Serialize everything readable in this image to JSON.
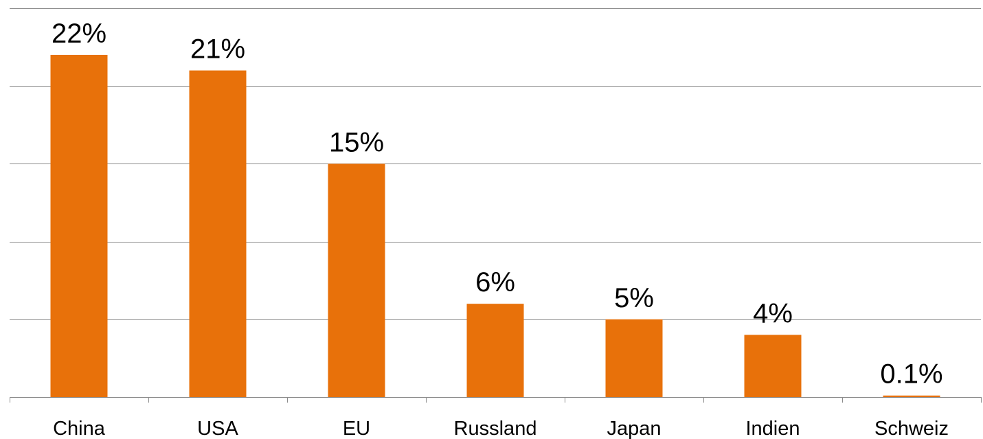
{
  "chart_data": {
    "type": "bar",
    "title": "",
    "xlabel": "",
    "ylabel": "",
    "categories": [
      "China",
      "USA",
      "EU",
      "Russland",
      "Japan",
      "Indien",
      "Schweiz"
    ],
    "values": [
      22,
      21,
      15,
      6,
      5,
      4,
      0.1
    ],
    "data_labels": [
      "22%",
      "21%",
      "15%",
      "6%",
      "5%",
      "4%",
      "0.1%"
    ],
    "unit": "%",
    "ylim": [
      0,
      25
    ],
    "grid": true,
    "y_ticks_shown": false,
    "legend": "none",
    "bar_color": "#e8710a",
    "grid_color": "#8c8c8c"
  }
}
